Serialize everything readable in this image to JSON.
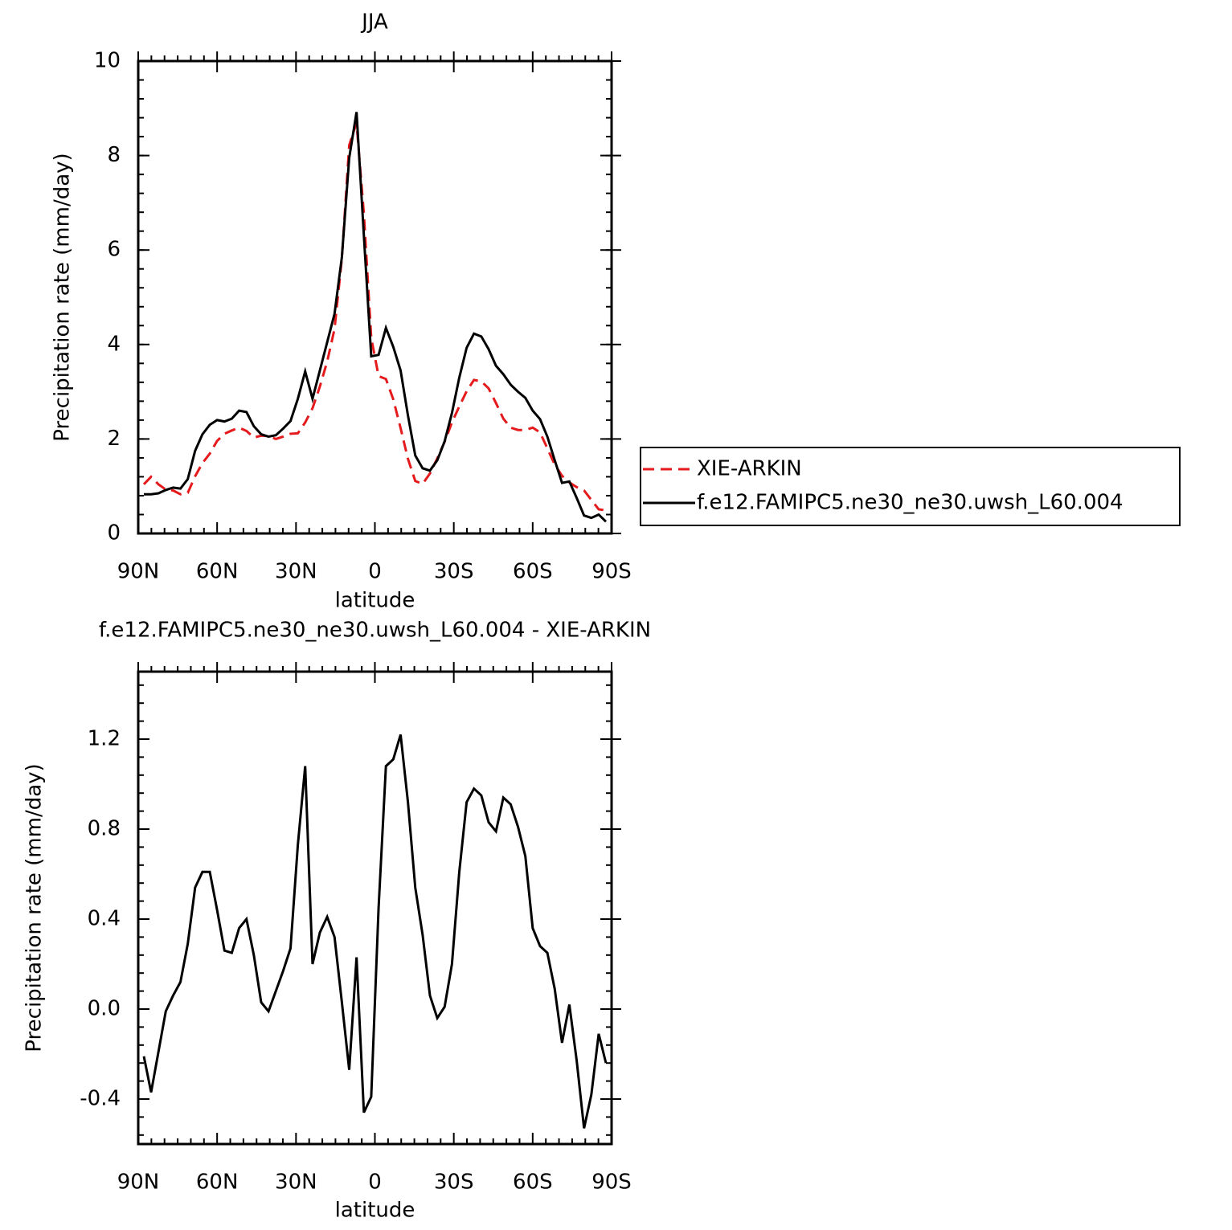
{
  "chart_data": [
    {
      "type": "line",
      "title": "JJA",
      "xlabel": "latitude",
      "ylabel": "Precipitation rate (mm/day)",
      "x": [
        87.86,
        85.1,
        82.31,
        79.53,
        76.74,
        73.95,
        71.16,
        68.37,
        65.58,
        62.79,
        60.0,
        57.21,
        54.42,
        51.63,
        48.84,
        46.04,
        43.25,
        40.46,
        37.67,
        34.88,
        32.09,
        29.3,
        26.51,
        23.72,
        20.93,
        18.14,
        15.35,
        12.56,
        9.77,
        6.98,
        4.19,
        1.4,
        -1.4,
        -4.19,
        -6.98,
        -9.77,
        -12.56,
        -15.35,
        -18.14,
        -20.93,
        -23.72,
        -26.51,
        -29.3,
        -32.09,
        -34.88,
        -37.67,
        -40.46,
        -43.25,
        -46.04,
        -48.84,
        -51.63,
        -54.42,
        -57.21,
        -60.0,
        -62.79,
        -65.58,
        -68.37,
        -71.16,
        -73.95,
        -76.74,
        -79.53,
        -82.31,
        -85.1,
        -87.86
      ],
      "series": [
        {
          "name": "XIE-ARKIN",
          "color": "#e41a1c",
          "linestyle": "dashed",
          "values": [
            1.04,
            1.2,
            1.04,
            0.93,
            0.91,
            0.83,
            0.86,
            1.21,
            1.49,
            1.69,
            1.96,
            2.11,
            2.18,
            2.24,
            2.17,
            2.03,
            2.07,
            2.06,
            2.0,
            2.05,
            2.11,
            2.12,
            2.35,
            2.65,
            3.11,
            3.64,
            4.33,
            5.82,
            8.22,
            8.69,
            6.76,
            4.14,
            3.33,
            3.27,
            2.84,
            2.23,
            1.58,
            1.11,
            1.05,
            1.27,
            1.59,
            1.94,
            2.35,
            2.69,
            3.01,
            3.25,
            3.22,
            3.07,
            2.76,
            2.43,
            2.24,
            2.19,
            2.19,
            2.24,
            2.14,
            1.8,
            1.46,
            1.22,
            1.08,
            0.98,
            0.91,
            0.71,
            0.51,
            0.49
          ]
        },
        {
          "name": "f.e12.FAMIPC5.ne30_ne30.uwsh_L60.004",
          "color": "#000000",
          "linestyle": "solid",
          "values": [
            0.83,
            0.83,
            0.85,
            0.92,
            0.97,
            0.95,
            1.15,
            1.75,
            2.1,
            2.3,
            2.4,
            2.37,
            2.43,
            2.6,
            2.57,
            2.27,
            2.1,
            2.05,
            2.08,
            2.22,
            2.38,
            2.85,
            3.43,
            2.85,
            3.45,
            4.05,
            4.65,
            5.85,
            7.95,
            8.92,
            6.3,
            3.75,
            3.78,
            4.35,
            3.95,
            3.45,
            2.5,
            1.65,
            1.38,
            1.33,
            1.55,
            1.95,
            2.55,
            3.3,
            3.93,
            4.23,
            4.17,
            3.9,
            3.55,
            3.37,
            3.15,
            3.0,
            2.87,
            2.6,
            2.42,
            2.05,
            1.55,
            1.07,
            1.1,
            0.75,
            0.38,
            0.33,
            0.4,
            0.25
          ]
        }
      ],
      "xlim": [
        90,
        -90
      ],
      "xticks": [
        {
          "value": 90,
          "label": "90N"
        },
        {
          "value": 60,
          "label": "60N"
        },
        {
          "value": 30,
          "label": "30N"
        },
        0,
        {
          "value": -30,
          "label": "30S"
        },
        {
          "value": -60,
          "label": "60S"
        },
        {
          "value": -90,
          "label": "90S"
        }
      ],
      "ylim": [
        0,
        10
      ],
      "yticks": [
        0,
        2,
        4,
        6,
        8,
        10
      ],
      "legend": "right"
    },
    {
      "type": "line",
      "title": "f.e12.FAMIPC5.ne30_ne30.uwsh_L60.004 - XIE-ARKIN",
      "xlabel": "latitude",
      "ylabel": "Precipitation rate (mm/day)",
      "x": [
        87.86,
        85.1,
        82.31,
        79.53,
        76.74,
        73.95,
        71.16,
        68.37,
        65.58,
        62.79,
        60.0,
        57.21,
        54.42,
        51.63,
        48.84,
        46.04,
        43.25,
        40.46,
        37.67,
        34.88,
        32.09,
        29.3,
        26.51,
        23.72,
        20.93,
        18.14,
        15.35,
        12.56,
        9.77,
        6.98,
        4.19,
        1.4,
        -1.4,
        -4.19,
        -6.98,
        -9.77,
        -12.56,
        -15.35,
        -18.14,
        -20.93,
        -23.72,
        -26.51,
        -29.3,
        -32.09,
        -34.88,
        -37.67,
        -40.46,
        -43.25,
        -46.04,
        -48.84,
        -51.63,
        -54.42,
        -57.21,
        -60.0,
        -62.79,
        -65.58,
        -68.37,
        -71.16,
        -73.95,
        -76.74,
        -79.53,
        -82.31,
        -85.1,
        -87.86
      ],
      "values": [
        -0.21,
        -0.37,
        -0.19,
        -0.01,
        0.06,
        0.12,
        0.29,
        0.54,
        0.61,
        0.61,
        0.44,
        0.26,
        0.25,
        0.36,
        0.4,
        0.24,
        0.03,
        -0.01,
        0.08,
        0.17,
        0.27,
        0.73,
        1.08,
        0.2,
        0.34,
        0.41,
        0.32,
        0.03,
        -0.27,
        0.23,
        -0.46,
        -0.39,
        0.45,
        1.08,
        1.11,
        1.22,
        0.92,
        0.54,
        0.33,
        0.06,
        -0.04,
        0.01,
        0.2,
        0.61,
        0.92,
        0.98,
        0.95,
        0.83,
        0.79,
        0.94,
        0.91,
        0.81,
        0.68,
        0.36,
        0.28,
        0.25,
        0.09,
        -0.15,
        0.02,
        -0.23,
        -0.53,
        -0.38,
        -0.11,
        -0.24
      ],
      "color": "#000000",
      "xlim": [
        90,
        -90
      ],
      "xticks": [
        {
          "value": 90,
          "label": "90N"
        },
        {
          "value": 60,
          "label": "60N"
        },
        {
          "value": 30,
          "label": "30N"
        },
        0,
        {
          "value": -30,
          "label": "30S"
        },
        {
          "value": -60,
          "label": "60S"
        },
        {
          "value": -90,
          "label": "90S"
        }
      ],
      "ylim": [
        -0.6,
        1.5
      ],
      "yticks": [
        -0.4,
        {
          "value": 0,
          "label": "0.0"
        },
        0.4,
        0.8,
        1.2
      ]
    }
  ]
}
